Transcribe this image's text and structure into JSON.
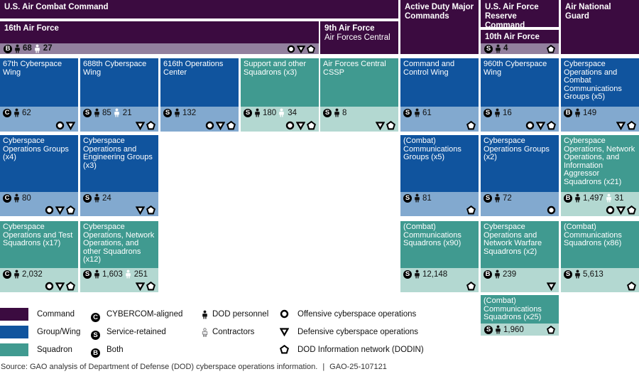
{
  "colors": {
    "command": "#3b0b40",
    "command_bar": "#92809e",
    "group_wing": "#10549e",
    "group_bar": "#82a9cf",
    "squadron": "#409a90",
    "squadron_bar": "#b3d8d1"
  },
  "headers": {
    "acc": "U.S. Air Combat Command",
    "active_duty": "Active Duty Major Commands",
    "reserve": "U.S. Air Force Reserve Command",
    "ang": "Air National Guard"
  },
  "commands": {
    "af16": {
      "title": "16th Air Force",
      "badge": "B",
      "dod": "68",
      "ctr": "27",
      "ops": [
        "offensive",
        "defensive",
        "dodin"
      ]
    },
    "af9": {
      "title": "9th Air Force",
      "subtitle": "Air Forces Central"
    },
    "af10": {
      "title": "10th Air Force",
      "badge": "S",
      "dod": "4",
      "ops": [
        "dodin"
      ]
    }
  },
  "units": [
    {
      "title": "67th Cyberspace Wing",
      "type": "group_wing",
      "badge": "C",
      "dod": "62",
      "ops": [
        "offensive",
        "defensive"
      ]
    },
    {
      "title": "688th Cyberspace Wing",
      "type": "group_wing",
      "badge": "S",
      "dod": "85",
      "ctr": "21",
      "ops": [
        "defensive",
        "dodin"
      ]
    },
    {
      "title": "616th Operations Center",
      "type": "group_wing",
      "badge": "S",
      "dod": "132",
      "ops": [
        "offensive",
        "defensive",
        "dodin"
      ]
    },
    {
      "title": "Support and other Squadrons (x3)",
      "type": "squadron",
      "badge": "S",
      "dod": "180",
      "ctr": "34",
      "ops": [
        "offensive",
        "defensive",
        "dodin"
      ]
    },
    {
      "title": "Air Forces Central CSSP",
      "type": "squadron",
      "badge": "S",
      "dod": "8",
      "ops": [
        "defensive",
        "dodin"
      ]
    },
    {
      "title": "Command and Control Wing",
      "type": "group_wing",
      "badge": "S",
      "dod": "61",
      "ops": [
        "dodin"
      ]
    },
    {
      "title": "960th Cyberspace Wing",
      "type": "group_wing",
      "badge": "S",
      "dod": "16",
      "ops": [
        "offensive",
        "defensive",
        "dodin"
      ]
    },
    {
      "title": "Cyberspace Operations and Combat Communications Groups (x5)",
      "type": "group_wing",
      "badge": "B",
      "dod": "149",
      "ops": [
        "defensive",
        "dodin"
      ]
    },
    {
      "title": "Cyberspace Operations Groups (x4)",
      "type": "group_wing",
      "badge": "C",
      "dod": "80",
      "ops": [
        "offensive",
        "defensive",
        "dodin"
      ]
    },
    {
      "title": "Cyberspace Operations and Engineering Groups (x3)",
      "type": "group_wing",
      "badge": "S",
      "dod": "24",
      "ops": [
        "defensive",
        "dodin"
      ]
    },
    {
      "title": "(Combat) Communications Groups (x5)",
      "type": "group_wing",
      "badge": "S",
      "dod": "81",
      "ops": [
        "dodin"
      ]
    },
    {
      "title": "Cyberspace Operations Groups (x2)",
      "type": "group_wing",
      "badge": "S",
      "dod": "72",
      "ops": [
        "offensive"
      ]
    },
    {
      "title": "Cyberspace Operations, Network Operations, and Information Aggressor Squadrons (x21)",
      "type": "squadron",
      "badge": "B",
      "dod": "1,497",
      "ctr": "31",
      "ops": [
        "offensive",
        "defensive",
        "dodin"
      ]
    },
    {
      "title": "Cyberspace Operations and Test Squadrons (x17)",
      "type": "squadron",
      "badge": "C",
      "dod": "2,032",
      "ops": [
        "offensive",
        "defensive",
        "dodin"
      ]
    },
    {
      "title": "Cyberspace Operations, Network Operations, and other Squadrons (x12)",
      "type": "squadron",
      "badge": "S",
      "dod": "1,603",
      "ctr": "251",
      "ops": [
        "defensive",
        "dodin"
      ]
    },
    {
      "title": "(Combat) Communications Squadrons (x90)",
      "type": "squadron",
      "badge": "S",
      "dod": "12,148",
      "ops": [
        "dodin"
      ]
    },
    {
      "title": "Cyberspace Operations and Network Warfare Squadrons (x2)",
      "type": "squadron",
      "badge": "B",
      "dod": "239",
      "ops": [
        "defensive"
      ]
    },
    {
      "title": "(Combat) Communications Squadrons (x86)",
      "type": "squadron",
      "badge": "S",
      "dod": "5,613",
      "ops": [
        "dodin"
      ]
    },
    {
      "title": "(Combat) Communications Squadrons (x25)",
      "type": "squadron",
      "badge": "S",
      "dod": "1,960",
      "ops": [
        "dodin"
      ]
    }
  ],
  "legend": {
    "types": [
      {
        "label": "Command"
      },
      {
        "label": "Group/Wing"
      },
      {
        "label": "Squadron"
      }
    ],
    "alignment": [
      {
        "badge": "C",
        "label": "CYBERCOM-aligned"
      },
      {
        "badge": "S",
        "label": "Service-retained"
      },
      {
        "badge": "B",
        "label": "Both"
      }
    ],
    "personnel": [
      {
        "icon": "dod-personnel",
        "label": "DOD personnel"
      },
      {
        "icon": "contractors",
        "label": "Contractors"
      }
    ],
    "operations": [
      {
        "icon": "offensive",
        "label": "Offensive cyberspace operations"
      },
      {
        "icon": "defensive",
        "label": "Defensive cyberspace operations"
      },
      {
        "icon": "dodin",
        "label": "DOD Information network (DODIN)"
      }
    ]
  },
  "source": {
    "text": "Source: GAO analysis of Department of Defense (DOD) cyberspace operations information.",
    "separator": "|",
    "report_id": "GAO-25-107121"
  }
}
